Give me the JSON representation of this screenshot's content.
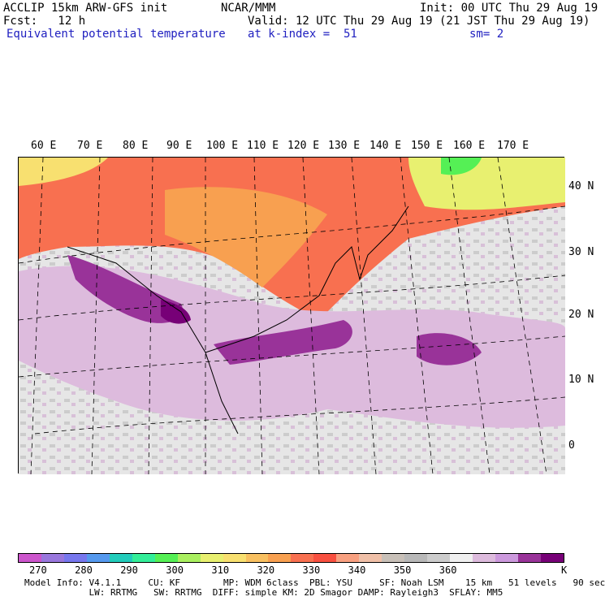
{
  "header": {
    "model": "ACCLIP 15km ARW-GFS init",
    "org": "NCAR/MMM",
    "init": "Init: 00 UTC Thu 29 Aug 19",
    "fcst": "Fcst:   12 h",
    "valid": "Valid: 12 UTC Thu 29 Aug 19 (21 JST Thu 29 Aug 19)",
    "field": "Equivalent potential temperature",
    "level": "at k-index =  51",
    "smooth": "sm= 2"
  },
  "map": {
    "lon_labels": [
      "60 E",
      "70 E",
      "80 E",
      "90 E",
      "100 E",
      "110 E",
      "120 E",
      "130 E",
      "140 E",
      "150 E",
      "160 E",
      "170 E"
    ],
    "lat_labels": [
      "40 N",
      "30 N",
      "20 N",
      "10 N",
      "0"
    ]
  },
  "colorbar": {
    "unit": "K",
    "ticks": [
      "270",
      "280",
      "290",
      "300",
      "310",
      "320",
      "330",
      "340",
      "350",
      "360"
    ],
    "colors": [
      "#cc55cc",
      "#9977dd",
      "#7777ee",
      "#5599ee",
      "#22ccbb",
      "#33ee99",
      "#55f055",
      "#aaf060",
      "#e8f070",
      "#f8e070",
      "#f8c060",
      "#f8a050",
      "#f87050",
      "#f85040",
      "#f8a080",
      "#f0c0a8",
      "#c8c0b8",
      "#b8b8b8",
      "#cccccc",
      "#f0f0f0",
      "#ddbbdd",
      "#cc99dd",
      "#993399",
      "#770077"
    ]
  },
  "footer": {
    "line1": "Model Info: V4.1.1     CU: KF        MP: WDM 6class  PBL: YSU     SF: Noah LSM    15 km   51 levels   90 sec",
    "line2": "            LW: RRTMG   SW: RRTMG  DIFF: simple KM: 2D Smagor DAMP: Rayleigh3  SFLAY: MM5"
  }
}
